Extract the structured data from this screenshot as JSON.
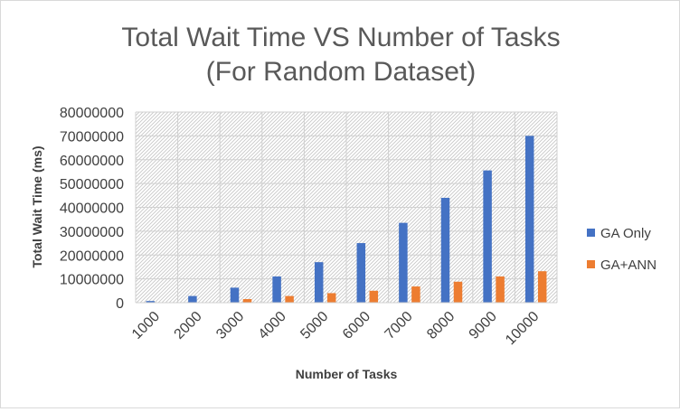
{
  "chart_data": {
    "type": "bar",
    "title": [
      "Total Wait Time VS Number of Tasks",
      "(For Random Dataset)"
    ],
    "xlabel": "Number of Tasks",
    "ylabel": "Total Wait Time (ms)",
    "categories": [
      "1000",
      "2000",
      "3000",
      "4000",
      "5000",
      "6000",
      "7000",
      "8000",
      "9000",
      "10000"
    ],
    "ylim": [
      0,
      80000000
    ],
    "yticks": [
      "0",
      "10000000",
      "20000000",
      "30000000",
      "40000000",
      "50000000",
      "60000000",
      "70000000",
      "80000000"
    ],
    "series": [
      {
        "name": "GA Only",
        "color": "#4472C4",
        "values": [
          700000,
          2800000,
          6300000,
          11000000,
          17000000,
          25000000,
          33500000,
          44000000,
          55500000,
          70000000
        ]
      },
      {
        "name": "GA+ANN",
        "color": "#ED7D31",
        "values": [
          0,
          0,
          1500000,
          2800000,
          4000000,
          5000000,
          6800000,
          8800000,
          11000000,
          13200000
        ]
      }
    ],
    "grid": true,
    "plot_background": "hatched",
    "legend_position": "right"
  }
}
